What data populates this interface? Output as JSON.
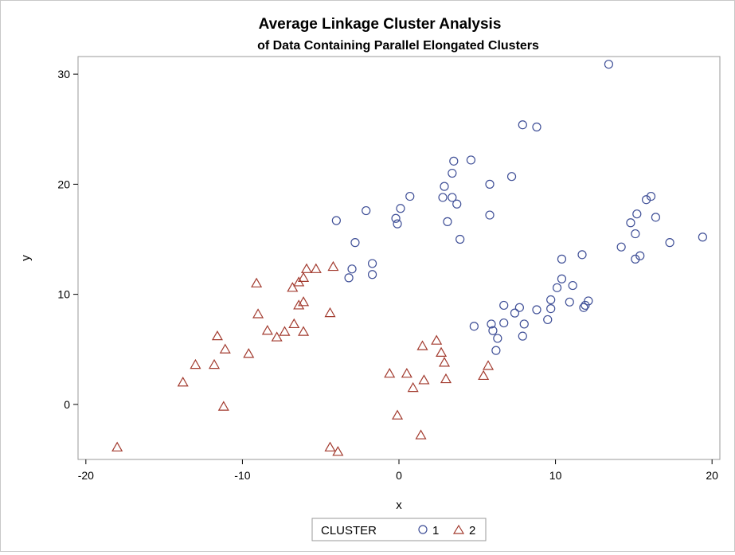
{
  "chart_data": {
    "type": "scatter",
    "title": "Average Linkage Cluster Analysis",
    "subtitle": "of Data Containing Parallel Elongated Clusters",
    "xlabel": "x",
    "ylabel": "y",
    "xlim": [
      -20.5,
      20.5
    ],
    "ylim": [
      -5,
      31.6
    ],
    "xticks": [
      -20,
      -10,
      0,
      10,
      20
    ],
    "yticks": [
      0,
      10,
      20,
      30
    ],
    "grid": false,
    "legend": {
      "title": "CLUSTER",
      "position": "bottom-center",
      "entries": [
        {
          "label": "1",
          "marker": "circle",
          "color": "#3f4f97"
        },
        {
          "label": "2",
          "marker": "triangle",
          "color": "#a23a2e"
        }
      ]
    },
    "series": [
      {
        "name": "1",
        "marker": "circle",
        "color": "#3f4f97",
        "points": [
          [
            13.4,
            30.9
          ],
          [
            7.9,
            25.4
          ],
          [
            8.8,
            25.2
          ],
          [
            4.6,
            22.2
          ],
          [
            3.5,
            22.1
          ],
          [
            7.2,
            20.7
          ],
          [
            3.4,
            21.0
          ],
          [
            2.9,
            19.8
          ],
          [
            5.8,
            20.0
          ],
          [
            0.7,
            18.9
          ],
          [
            2.8,
            18.8
          ],
          [
            3.4,
            18.8
          ],
          [
            3.7,
            18.2
          ],
          [
            0.1,
            17.8
          ],
          [
            -2.1,
            17.6
          ],
          [
            -0.2,
            16.9
          ],
          [
            5.8,
            17.2
          ],
          [
            -4.0,
            16.7
          ],
          [
            -0.1,
            16.4
          ],
          [
            3.1,
            16.6
          ],
          [
            3.9,
            15.0
          ],
          [
            -2.8,
            14.7
          ],
          [
            -1.7,
            12.8
          ],
          [
            -3.0,
            12.3
          ],
          [
            -1.7,
            11.8
          ],
          [
            -3.2,
            11.5
          ],
          [
            19.4,
            15.2
          ],
          [
            16.1,
            18.9
          ],
          [
            15.8,
            18.6
          ],
          [
            16.4,
            17.0
          ],
          [
            15.2,
            17.3
          ],
          [
            14.8,
            16.5
          ],
          [
            15.1,
            15.5
          ],
          [
            17.3,
            14.7
          ],
          [
            14.2,
            14.3
          ],
          [
            11.7,
            13.6
          ],
          [
            10.4,
            13.2
          ],
          [
            15.4,
            13.5
          ],
          [
            15.1,
            13.2
          ],
          [
            10.4,
            11.4
          ],
          [
            10.1,
            10.6
          ],
          [
            11.1,
            10.8
          ],
          [
            9.7,
            9.5
          ],
          [
            10.9,
            9.3
          ],
          [
            12.1,
            9.4
          ],
          [
            11.9,
            9.0
          ],
          [
            11.8,
            8.8
          ],
          [
            6.7,
            9.0
          ],
          [
            7.7,
            8.8
          ],
          [
            8.8,
            8.6
          ],
          [
            9.7,
            8.7
          ],
          [
            7.4,
            8.3
          ],
          [
            9.5,
            7.7
          ],
          [
            4.8,
            7.1
          ],
          [
            5.9,
            7.3
          ],
          [
            6.7,
            7.4
          ],
          [
            8.0,
            7.3
          ],
          [
            6.0,
            6.7
          ],
          [
            7.9,
            6.2
          ],
          [
            6.3,
            6.0
          ],
          [
            6.2,
            4.9
          ]
        ]
      },
      {
        "name": "2",
        "marker": "triangle",
        "color": "#a23a2e",
        "points": [
          [
            -5.9,
            12.3
          ],
          [
            -5.3,
            12.3
          ],
          [
            -4.2,
            12.5
          ],
          [
            -6.1,
            11.5
          ],
          [
            -9.1,
            11.0
          ],
          [
            -6.4,
            11.1
          ],
          [
            -6.8,
            10.6
          ],
          [
            -6.1,
            9.3
          ],
          [
            -6.4,
            9.0
          ],
          [
            -4.4,
            8.3
          ],
          [
            -9.0,
            8.2
          ],
          [
            -8.4,
            6.7
          ],
          [
            -6.7,
            7.3
          ],
          [
            -7.3,
            6.6
          ],
          [
            -6.1,
            6.6
          ],
          [
            -7.8,
            6.1
          ],
          [
            -11.6,
            6.2
          ],
          [
            -11.1,
            5.0
          ],
          [
            -9.6,
            4.6
          ],
          [
            -13.0,
            3.6
          ],
          [
            -11.8,
            3.6
          ],
          [
            -13.8,
            2.0
          ],
          [
            -11.2,
            -0.2
          ],
          [
            -18.0,
            -3.9
          ],
          [
            -4.4,
            -3.9
          ],
          [
            -3.9,
            -4.3
          ],
          [
            2.4,
            5.8
          ],
          [
            1.5,
            5.3
          ],
          [
            2.7,
            4.7
          ],
          [
            2.9,
            3.8
          ],
          [
            5.7,
            3.5
          ],
          [
            -0.6,
            2.8
          ],
          [
            0.5,
            2.8
          ],
          [
            5.4,
            2.6
          ],
          [
            1.6,
            2.2
          ],
          [
            3.0,
            2.3
          ],
          [
            0.9,
            1.5
          ],
          [
            -0.1,
            -1.0
          ],
          [
            1.4,
            -2.8
          ]
        ]
      }
    ]
  }
}
